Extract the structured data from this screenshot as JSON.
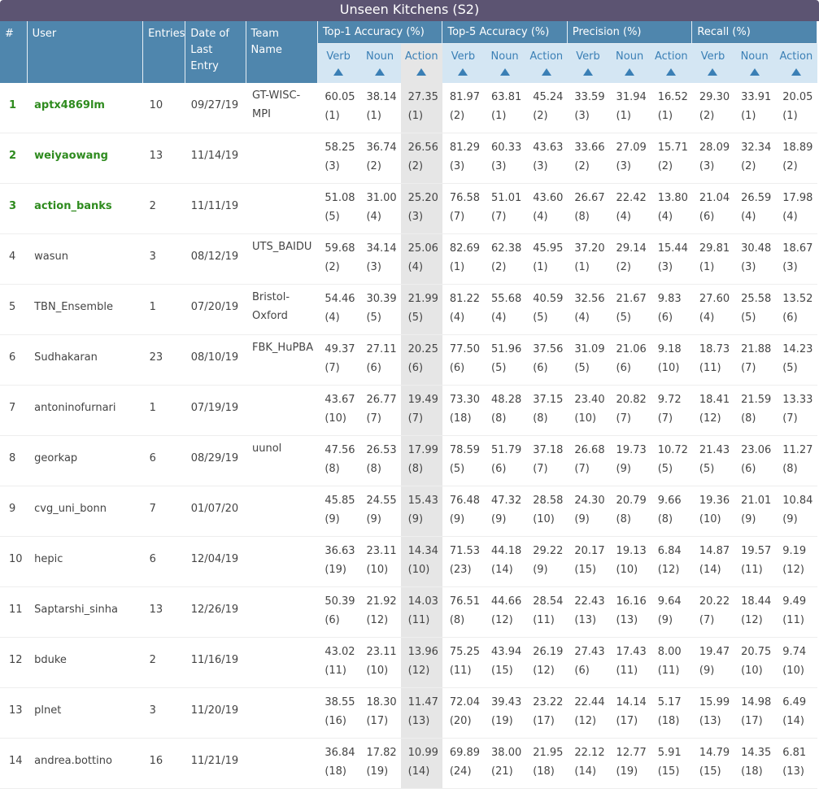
{
  "title": "Unseen Kitchens (S2)",
  "headers": {
    "rank": "#",
    "user": "User",
    "entries": "Entries",
    "date": "Date of Last Entry",
    "team": "Team Name",
    "groups": [
      "Top-1 Accuracy (%)",
      "Top-5 Accuracy (%)",
      "Precision (%)",
      "Recall (%)"
    ],
    "sub": [
      "Verb",
      "Noun",
      "Action"
    ]
  },
  "sort_column": "Top-1 Accuracy Action",
  "colors": {
    "title_bg": "#5c5472",
    "header_bg": "#4f86ad",
    "subheader_bg": "#d4e6f3",
    "highlight": "#e6e6e6",
    "top_user": "#2e8b1e"
  },
  "rows": [
    {
      "rank": "1",
      "user": "aptx4869lm",
      "entries": "10",
      "date": "09/27/19",
      "team": "GT-WISC-MPI",
      "vals": [
        "60.05",
        "38.14",
        "27.35",
        "81.97",
        "63.81",
        "45.24",
        "33.59",
        "31.94",
        "16.52",
        "29.30",
        "33.91",
        "20.05"
      ],
      "ranks": [
        "(1)",
        "(1)",
        "(1)",
        "(2)",
        "(1)",
        "(2)",
        "(3)",
        "(1)",
        "(1)",
        "(2)",
        "(1)",
        "(1)"
      ]
    },
    {
      "rank": "2",
      "user": "weiyaowang",
      "entries": "13",
      "date": "11/14/19",
      "team": "",
      "vals": [
        "58.25",
        "36.74",
        "26.56",
        "81.29",
        "60.33",
        "43.63",
        "33.66",
        "27.09",
        "15.71",
        "28.09",
        "32.34",
        "18.89"
      ],
      "ranks": [
        "(3)",
        "(2)",
        "(2)",
        "(3)",
        "(3)",
        "(3)",
        "(2)",
        "(3)",
        "(2)",
        "(3)",
        "(2)",
        "(2)"
      ]
    },
    {
      "rank": "3",
      "user": "action_banks",
      "entries": "2",
      "date": "11/11/19",
      "team": "",
      "vals": [
        "51.08",
        "31.00",
        "25.20",
        "76.58",
        "51.01",
        "43.60",
        "26.67",
        "22.42",
        "13.80",
        "21.04",
        "26.59",
        "17.98"
      ],
      "ranks": [
        "(5)",
        "(4)",
        "(3)",
        "(7)",
        "(7)",
        "(4)",
        "(8)",
        "(4)",
        "(4)",
        "(6)",
        "(4)",
        "(4)"
      ]
    },
    {
      "rank": "4",
      "user": "wasun",
      "entries": "3",
      "date": "08/12/19",
      "team": "UTS_BAIDU",
      "vals": [
        "59.68",
        "34.14",
        "25.06",
        "82.69",
        "62.38",
        "45.95",
        "37.20",
        "29.14",
        "15.44",
        "29.81",
        "30.48",
        "18.67"
      ],
      "ranks": [
        "(2)",
        "(3)",
        "(4)",
        "(1)",
        "(2)",
        "(1)",
        "(1)",
        "(2)",
        "(3)",
        "(1)",
        "(3)",
        "(3)"
      ]
    },
    {
      "rank": "5",
      "user": "TBN_Ensemble",
      "entries": "1",
      "date": "07/20/19",
      "team": "Bristol-Oxford",
      "vals": [
        "54.46",
        "30.39",
        "21.99",
        "81.22",
        "55.68",
        "40.59",
        "32.56",
        "21.67",
        "9.83",
        "27.60",
        "25.58",
        "13.52"
      ],
      "ranks": [
        "(4)",
        "(5)",
        "(5)",
        "(4)",
        "(4)",
        "(5)",
        "(4)",
        "(5)",
        "(6)",
        "(4)",
        "(5)",
        "(6)"
      ]
    },
    {
      "rank": "6",
      "user": "Sudhakaran",
      "entries": "23",
      "date": "08/10/19",
      "team": "FBK_HuPBA",
      "vals": [
        "49.37",
        "27.11",
        "20.25",
        "77.50",
        "51.96",
        "37.56",
        "31.09",
        "21.06",
        "9.18",
        "18.73",
        "21.88",
        "14.23"
      ],
      "ranks": [
        "(7)",
        "(6)",
        "(6)",
        "(6)",
        "(5)",
        "(6)",
        "(5)",
        "(6)",
        "(10)",
        "(11)",
        "(7)",
        "(5)"
      ]
    },
    {
      "rank": "7",
      "user": "antoninofurnari",
      "entries": "1",
      "date": "07/19/19",
      "team": "",
      "vals": [
        "43.67",
        "26.77",
        "19.49",
        "73.30",
        "48.28",
        "37.15",
        "23.40",
        "20.82",
        "9.72",
        "18.41",
        "21.59",
        "13.33"
      ],
      "ranks": [
        "(10)",
        "(7)",
        "(7)",
        "(18)",
        "(8)",
        "(8)",
        "(10)",
        "(7)",
        "(7)",
        "(12)",
        "(8)",
        "(7)"
      ]
    },
    {
      "rank": "8",
      "user": "georkap",
      "entries": "6",
      "date": "08/29/19",
      "team": "uunol",
      "vals": [
        "47.56",
        "26.53",
        "17.99",
        "78.59",
        "51.79",
        "37.18",
        "26.68",
        "19.73",
        "10.72",
        "21.43",
        "23.06",
        "11.27"
      ],
      "ranks": [
        "(8)",
        "(8)",
        "(8)",
        "(5)",
        "(6)",
        "(7)",
        "(7)",
        "(9)",
        "(5)",
        "(5)",
        "(6)",
        "(8)"
      ]
    },
    {
      "rank": "9",
      "user": "cvg_uni_bonn",
      "entries": "7",
      "date": "01/07/20",
      "team": "",
      "vals": [
        "45.85",
        "24.55",
        "15.43",
        "76.48",
        "47.32",
        "28.58",
        "24.30",
        "20.79",
        "9.66",
        "19.36",
        "21.01",
        "10.84"
      ],
      "ranks": [
        "(9)",
        "(9)",
        "(9)",
        "(9)",
        "(9)",
        "(10)",
        "(9)",
        "(8)",
        "(8)",
        "(10)",
        "(9)",
        "(9)"
      ]
    },
    {
      "rank": "10",
      "user": "hepic",
      "entries": "6",
      "date": "12/04/19",
      "team": "",
      "vals": [
        "36.63",
        "23.11",
        "14.34",
        "71.53",
        "44.18",
        "29.22",
        "20.17",
        "19.13",
        "6.84",
        "14.87",
        "19.57",
        "9.19"
      ],
      "ranks": [
        "(19)",
        "(10)",
        "(10)",
        "(23)",
        "(14)",
        "(9)",
        "(15)",
        "(10)",
        "(12)",
        "(14)",
        "(11)",
        "(12)"
      ]
    },
    {
      "rank": "11",
      "user": "Saptarshi_sinha",
      "entries": "13",
      "date": "12/26/19",
      "team": "",
      "vals": [
        "50.39",
        "21.92",
        "14.03",
        "76.51",
        "44.66",
        "28.54",
        "22.43",
        "16.16",
        "9.64",
        "20.22",
        "18.44",
        "9.49"
      ],
      "ranks": [
        "(6)",
        "(12)",
        "(11)",
        "(8)",
        "(12)",
        "(11)",
        "(13)",
        "(13)",
        "(9)",
        "(7)",
        "(12)",
        "(11)"
      ]
    },
    {
      "rank": "12",
      "user": "bduke",
      "entries": "2",
      "date": "11/16/19",
      "team": "",
      "vals": [
        "43.02",
        "23.11",
        "13.96",
        "75.25",
        "43.94",
        "26.19",
        "27.43",
        "17.43",
        "8.00",
        "19.47",
        "20.75",
        "9.74"
      ],
      "ranks": [
        "(11)",
        "(10)",
        "(12)",
        "(11)",
        "(15)",
        "(12)",
        "(6)",
        "(11)",
        "(11)",
        "(9)",
        "(10)",
        "(10)"
      ]
    },
    {
      "rank": "13",
      "user": "plnet",
      "entries": "3",
      "date": "11/20/19",
      "team": "",
      "vals": [
        "38.55",
        "18.30",
        "11.47",
        "72.04",
        "39.43",
        "23.22",
        "22.44",
        "14.14",
        "5.17",
        "15.99",
        "14.98",
        "6.49"
      ],
      "ranks": [
        "(16)",
        "(17)",
        "(13)",
        "(20)",
        "(19)",
        "(17)",
        "(12)",
        "(17)",
        "(18)",
        "(13)",
        "(17)",
        "(14)"
      ]
    },
    {
      "rank": "14",
      "user": "andrea.bottino",
      "entries": "16",
      "date": "11/21/19",
      "team": "",
      "vals": [
        "36.84",
        "17.82",
        "10.99",
        "69.89",
        "38.00",
        "21.95",
        "22.12",
        "12.77",
        "5.91",
        "14.79",
        "14.35",
        "6.81"
      ],
      "ranks": [
        "(18)",
        "(19)",
        "(14)",
        "(24)",
        "(21)",
        "(18)",
        "(14)",
        "(19)",
        "(15)",
        "(15)",
        "(18)",
        "(13)"
      ]
    }
  ]
}
